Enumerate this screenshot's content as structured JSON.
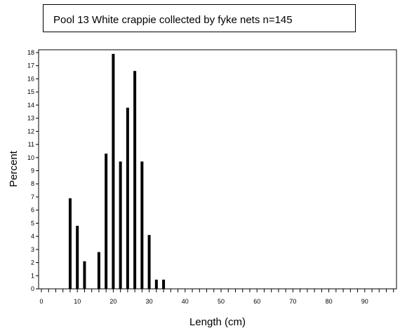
{
  "chart_data": {
    "type": "bar",
    "title": "Pool 13 White crappie collected by fyke nets   n=145",
    "xlabel": "Length (cm)",
    "ylabel": "Percent",
    "xlim": [
      0,
      100
    ],
    "ylim": [
      0,
      18
    ],
    "x_ticks": [
      0,
      10,
      20,
      30,
      40,
      50,
      60,
      70,
      80,
      90
    ],
    "y_ticks": [
      0,
      1,
      2,
      3,
      4,
      5,
      6,
      7,
      8,
      9,
      10,
      11,
      12,
      13,
      14,
      15,
      16,
      17,
      18
    ],
    "grid": false,
    "x": [
      8,
      10,
      12,
      16,
      18,
      20,
      22,
      24,
      26,
      28,
      30,
      32,
      34
    ],
    "values": [
      6.9,
      4.8,
      2.1,
      2.8,
      10.3,
      17.9,
      9.7,
      13.8,
      16.6,
      9.7,
      4.1,
      0.7,
      0.7
    ]
  }
}
